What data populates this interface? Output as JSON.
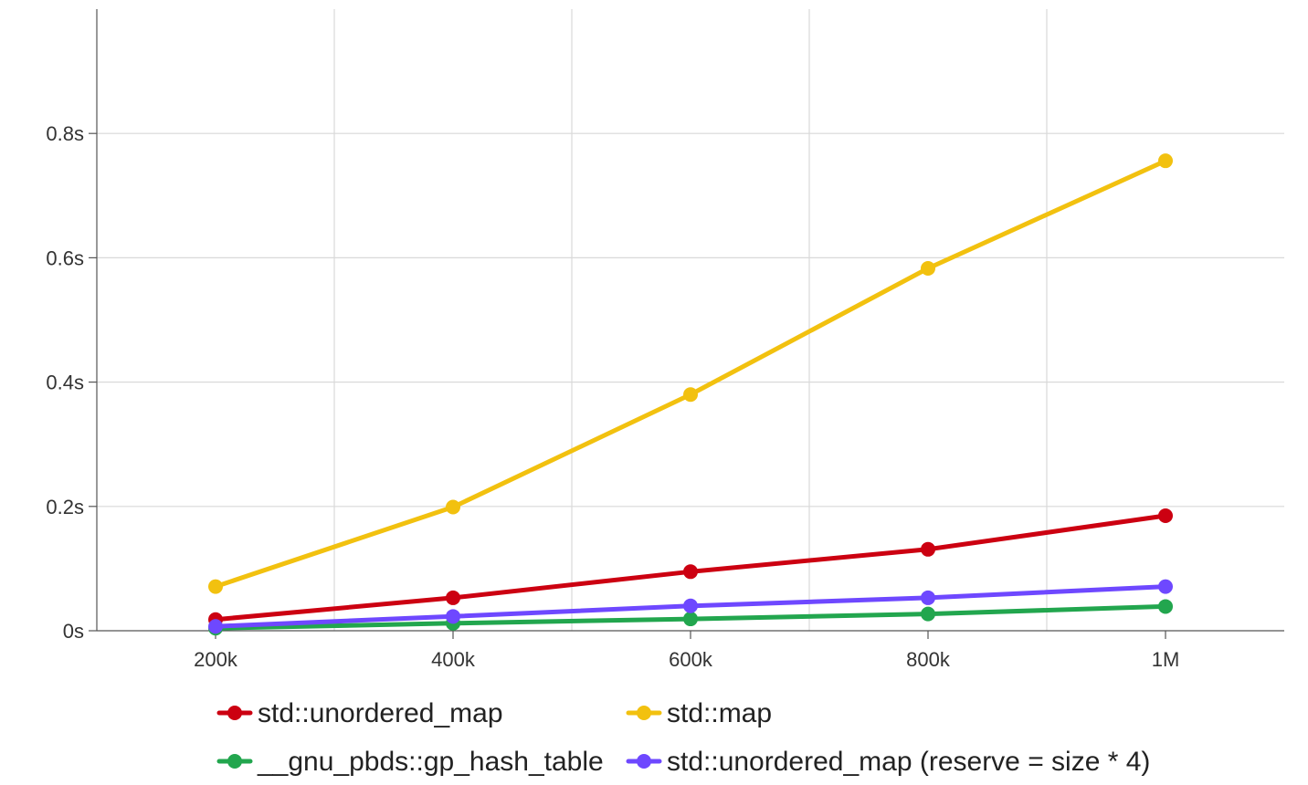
{
  "chart_data": {
    "type": "line",
    "title": "",
    "xlabel": "",
    "ylabel": "",
    "x": [
      200000,
      400000,
      600000,
      800000,
      1000000
    ],
    "xlim": [
      100000,
      1100000
    ],
    "ylim": [
      0,
      1.0
    ],
    "x_ticks": [
      {
        "value": 200000,
        "label": "200k"
      },
      {
        "value": 400000,
        "label": "400k"
      },
      {
        "value": 600000,
        "label": "600k"
      },
      {
        "value": 800000,
        "label": "800k"
      },
      {
        "value": 1000000,
        "label": "1M"
      }
    ],
    "y_ticks": [
      {
        "value": 0,
        "label": "0s"
      },
      {
        "value": 0.2,
        "label": "0.2s"
      },
      {
        "value": 0.4,
        "label": "0.4s"
      },
      {
        "value": 0.6,
        "label": "0.6s"
      },
      {
        "value": 0.8,
        "label": "0.8s"
      }
    ],
    "x_grid": [
      300000,
      500000,
      700000,
      900000
    ],
    "grid": true,
    "legend_position": "bottom",
    "series": [
      {
        "name": "std::unordered_map",
        "color": "#cc0011",
        "values": [
          0.018,
          0.053,
          0.095,
          0.131,
          0.185
        ]
      },
      {
        "name": "std::map",
        "color": "#f2c10f",
        "values": [
          0.071,
          0.199,
          0.38,
          0.583,
          0.756
        ]
      },
      {
        "name": "__gnu_pbds::gp_hash_table",
        "color": "#22a64e",
        "values": [
          0.004,
          0.012,
          0.019,
          0.027,
          0.039
        ]
      },
      {
        "name": "std::unordered_map (reserve = size * 4)",
        "color": "#6e48ff",
        "values": [
          0.007,
          0.023,
          0.04,
          0.053,
          0.071
        ]
      }
    ]
  }
}
